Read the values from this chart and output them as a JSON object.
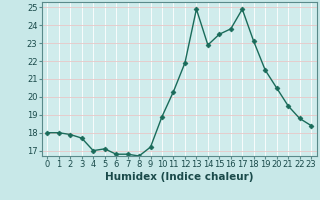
{
  "xlabel": "Humidex (Indice chaleur)",
  "x": [
    0,
    1,
    2,
    3,
    4,
    5,
    6,
    7,
    8,
    9,
    10,
    11,
    12,
    13,
    14,
    15,
    16,
    17,
    18,
    19,
    20,
    21,
    22,
    23
  ],
  "y": [
    18.0,
    18.0,
    17.9,
    17.7,
    17.0,
    17.1,
    16.8,
    16.8,
    16.7,
    17.2,
    18.9,
    20.3,
    21.9,
    24.9,
    22.9,
    23.5,
    23.8,
    24.9,
    23.1,
    21.5,
    20.5,
    19.5,
    18.8,
    18.4
  ],
  "line_color": "#1a6b5a",
  "marker": "D",
  "marker_size": 2.5,
  "line_width": 1.0,
  "bg_color": "#c8e8e8",
  "grid_major_color": "#e8c8c8",
  "grid_minor_color": "#ffffff",
  "plot_bg": "#d0ecec",
  "ylim": [
    16.7,
    25.3
  ],
  "xlim": [
    -0.5,
    23.5
  ],
  "yticks": [
    17,
    18,
    19,
    20,
    21,
    22,
    23,
    24,
    25
  ],
  "xticks": [
    0,
    1,
    2,
    3,
    4,
    5,
    6,
    7,
    8,
    9,
    10,
    11,
    12,
    13,
    14,
    15,
    16,
    17,
    18,
    19,
    20,
    21,
    22,
    23
  ],
  "tick_fontsize": 6.0,
  "label_fontsize": 7.5
}
